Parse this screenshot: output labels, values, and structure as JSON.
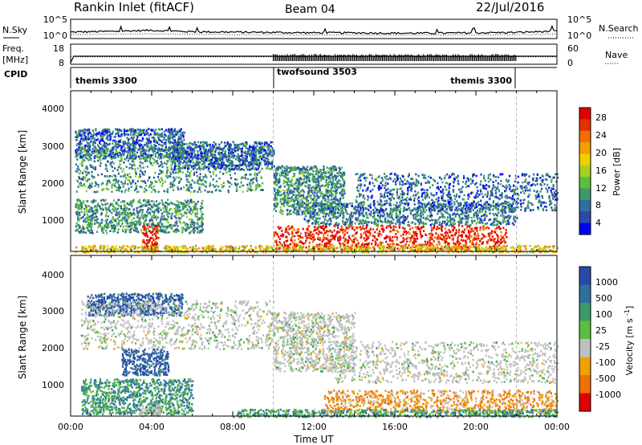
{
  "header": {
    "station": "Rankin Inlet (fitACF)",
    "beam": "Beam 04",
    "date": "22/Jul/2016"
  },
  "colors": {
    "frame": "#000000",
    "background": "#ffffff",
    "ground_scatter": "#c0c0c0",
    "mode_divider": "#bbbbbb"
  },
  "chart_data": [
    {
      "type": "line",
      "panel": "noise",
      "left_label": "N.Sky",
      "right_label": "N.Search",
      "left_ticks": [
        "10^5",
        "10^0"
      ],
      "right_ticks": [
        "10^5",
        "10^0"
      ],
      "x": [
        0,
        2,
        4,
        6,
        8,
        10,
        12,
        14,
        16,
        18,
        20,
        22,
        24
      ],
      "series": [
        {
          "name": "N.Sky",
          "style": "solid",
          "values": [
            1.6,
            1.8,
            2.1,
            1.7,
            1.6,
            1.5,
            1.4,
            1.4,
            1.3,
            1.3,
            1.4,
            1.5,
            1.9
          ]
        },
        {
          "name": "N.Search",
          "style": "dotted",
          "values": [
            0.9,
            1.0,
            1.1,
            1.0,
            0.9,
            0.9,
            0.8,
            0.8,
            0.8,
            0.8,
            0.8,
            0.9,
            1.0
          ]
        }
      ],
      "ylim": [
        0,
        5
      ]
    },
    {
      "type": "line",
      "panel": "freq_nave",
      "left_label_top": "Freq.",
      "left_label_bottom": "[MHz]",
      "right_label": "Nave",
      "left_ticks": [
        "18",
        "8"
      ],
      "right_ticks": [
        "60",
        "0"
      ],
      "series": [
        {
          "name": "Freq.",
          "style": "solid",
          "x": [
            0,
            0.15,
            10,
            22,
            24
          ],
          "values": [
            8,
            12,
            12,
            12,
            12
          ]
        },
        {
          "name": "Nave",
          "style": "dotted",
          "x": [
            0,
            10,
            22,
            24
          ],
          "values": [
            22,
            22,
            22,
            22
          ]
        }
      ],
      "dense_band": {
        "x_range": [
          10,
          22
        ],
        "values": [
          8,
          12
        ]
      },
      "ylim": [
        8,
        18
      ]
    },
    {
      "type": "table",
      "panel": "cpid",
      "label": "CPID",
      "segments": [
        {
          "name": "themis 3300",
          "start": 0,
          "end": 10
        },
        {
          "name": "twofsound 3503",
          "start": 10,
          "end": 22
        },
        {
          "name": "themis 3300",
          "start": 10,
          "end": 22
        }
      ]
    },
    {
      "type": "heatmap",
      "panel": "power",
      "ylabel": "Slant Range [km]",
      "xlim": [
        0,
        24
      ],
      "ylim": [
        180,
        4500
      ],
      "yticks": [
        "4000",
        "3000",
        "2000",
        "1000"
      ],
      "colorbar": {
        "label": "Power [dB]",
        "ticks": [
          "28",
          "24",
          "20",
          "16",
          "12",
          "8",
          "4"
        ],
        "colors": [
          "#0000ff",
          "#2a4aa8",
          "#2f6fa0",
          "#3c9a6a",
          "#5abf3e",
          "#a8d020",
          "#f0d000",
          "#f0a000",
          "#f07000",
          "#e83000",
          "#e00000"
        ]
      },
      "regions": [
        {
          "t0": 0.2,
          "t1": 5.6,
          "r0": 2700,
          "r1": 3500,
          "level": 0.2
        },
        {
          "t0": 0.2,
          "t1": 9.5,
          "r0": 1800,
          "r1": 3000,
          "level": 0.3
        },
        {
          "t0": 5.0,
          "t1": 10.0,
          "r0": 2400,
          "r1": 3150,
          "level": 0.2
        },
        {
          "t0": 10.0,
          "t1": 13.5,
          "r0": 1200,
          "r1": 2500,
          "level": 0.3
        },
        {
          "t0": 0.2,
          "t1": 6.5,
          "r0": 700,
          "r1": 1600,
          "level": 0.3
        },
        {
          "t0": 3.5,
          "t1": 4.3,
          "r0": 200,
          "r1": 900,
          "level": 0.95
        },
        {
          "t0": 11.5,
          "t1": 22.0,
          "r0": 900,
          "r1": 1500,
          "level": 0.25
        },
        {
          "t0": 14.0,
          "t1": 24.0,
          "r0": 1300,
          "r1": 2300,
          "level": 0.2
        },
        {
          "t0": 10.0,
          "t1": 21.5,
          "r0": 250,
          "r1": 900,
          "level": 0.9
        },
        {
          "t0": 0.2,
          "t1": 24.0,
          "r0": 180,
          "r1": 360,
          "level": 0.6
        }
      ]
    },
    {
      "type": "heatmap",
      "panel": "velocity",
      "ylabel": "Slant Range [km]",
      "xlabel": "Time UT",
      "xlim": [
        0,
        24
      ],
      "ylim": [
        180,
        4500
      ],
      "xticks": [
        "00:00",
        "04:00",
        "08:00",
        "12:00",
        "16:00",
        "20:00",
        "00:00"
      ],
      "yticks": [
        "4000",
        "3000",
        "2000",
        "1000"
      ],
      "colorbar": {
        "label": "Velocity [m s^-1]",
        "ticks": [
          "1000",
          "500",
          "100",
          "25",
          "-25",
          "-100",
          "-500",
          "-1000"
        ],
        "colors": [
          "#2a4aa8",
          "#2f6fa0",
          "#3c9a6a",
          "#5abf3e",
          "#c0c0c0",
          "#f0a000",
          "#f07000",
          "#e00000"
        ]
      },
      "regions": [
        {
          "t0": 0.8,
          "t1": 5.5,
          "r0": 2900,
          "r1": 3500,
          "level": 0.1
        },
        {
          "t0": 0.5,
          "t1": 10.0,
          "r0": 2000,
          "r1": 3300,
          "level": 0.5
        },
        {
          "t0": 10.0,
          "t1": 14.0,
          "r0": 1400,
          "r1": 3000,
          "level": 0.5
        },
        {
          "t0": 2.5,
          "t1": 4.8,
          "r0": 1300,
          "r1": 2000,
          "level": 0.1
        },
        {
          "t0": 0.5,
          "t1": 6.0,
          "r0": 250,
          "r1": 1200,
          "level": 0.3
        },
        {
          "t0": 3.3,
          "t1": 4.4,
          "r0": 200,
          "r1": 500,
          "level": 0.5
        },
        {
          "t0": 13.0,
          "t1": 24.0,
          "r0": 1100,
          "r1": 2200,
          "level": 0.5
        },
        {
          "t0": 12.5,
          "t1": 24.0,
          "r0": 300,
          "r1": 900,
          "level": 0.7
        },
        {
          "t0": 8.0,
          "t1": 24.0,
          "r0": 180,
          "r1": 380,
          "level": 0.35
        }
      ]
    }
  ]
}
